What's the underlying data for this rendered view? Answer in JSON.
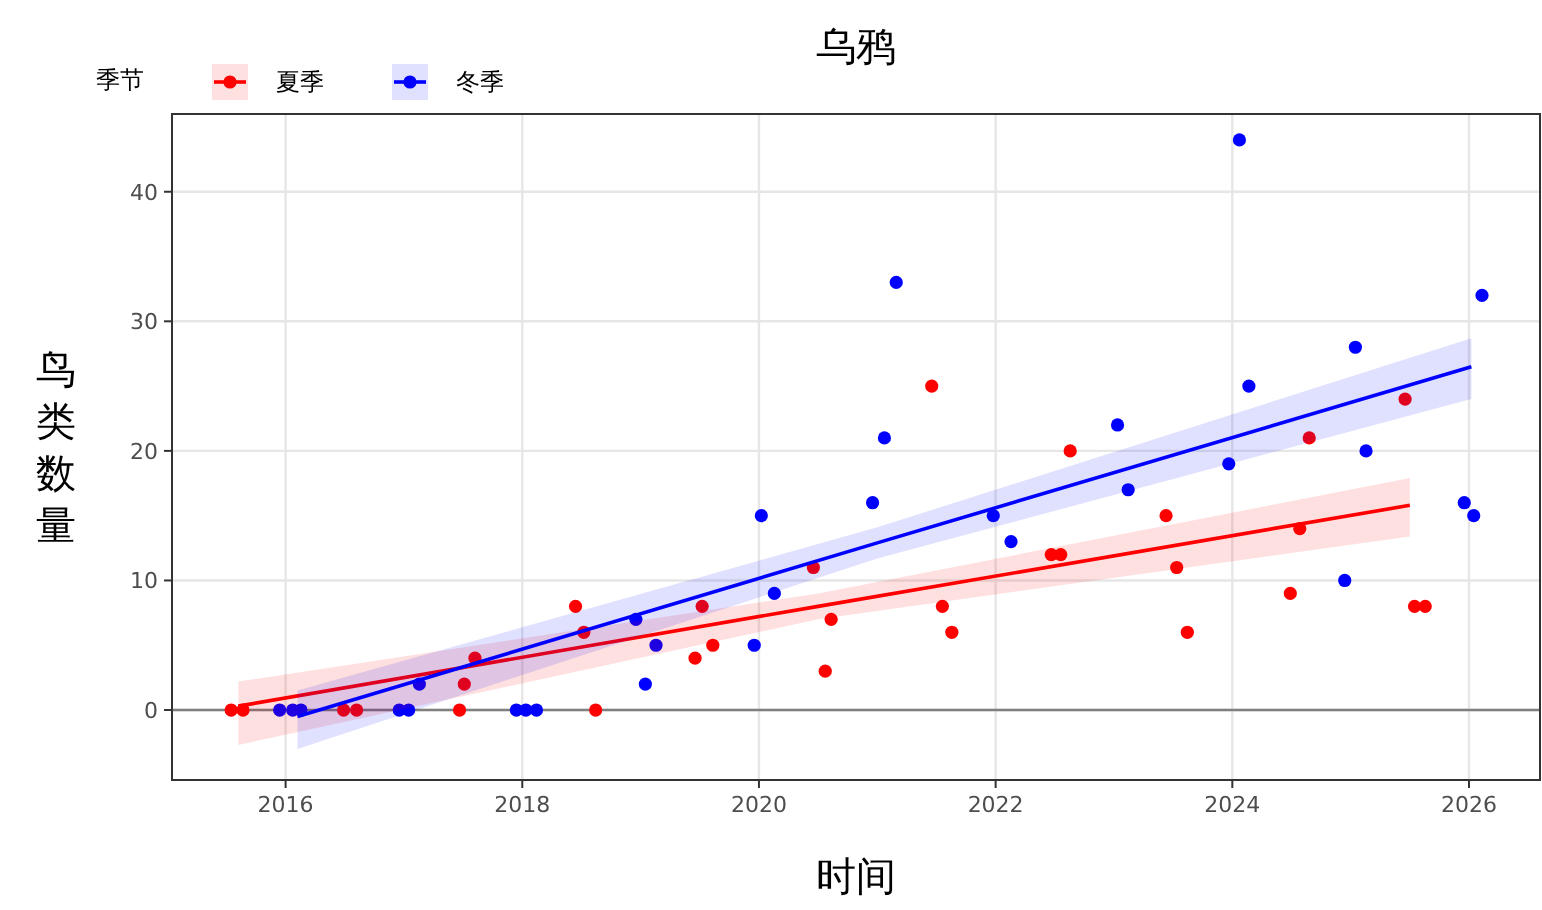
{
  "chart_data": {
    "type": "scatter",
    "title": "乌鸦",
    "xlabel": "时间",
    "ylabel": "鸟类数量",
    "legend_title": "季节",
    "legend": "top left",
    "xlim": [
      2015.04,
      2026.6
    ],
    "xticks": [
      2016,
      2018,
      2020,
      2022,
      2024,
      2026
    ],
    "ylim": [
      -5.4,
      46
    ],
    "yticks": [
      0,
      10,
      20,
      30,
      40
    ],
    "grid": true,
    "ref_lines": [
      {
        "axis": "y",
        "value": 0,
        "color": "#808080"
      }
    ],
    "series": [
      {
        "name": "夏季",
        "color": "#ff0000",
        "marker": "circle",
        "x": [
          2015.54,
          2015.64,
          2016.49,
          2016.6,
          2017.47,
          2017.51,
          2017.6,
          2018.45,
          2018.52,
          2018.62,
          2019.46,
          2019.52,
          2019.61,
          2020.46,
          2020.56,
          2020.61,
          2021.46,
          2021.55,
          2021.63,
          2022.47,
          2022.55,
          2022.63,
          2023.44,
          2023.53,
          2023.62,
          2024.49,
          2024.57,
          2024.65,
          2025.46,
          2025.54,
          2025.63
        ],
        "values": [
          0,
          0,
          0,
          0,
          0,
          2,
          4,
          8,
          6,
          0,
          4,
          8,
          5,
          11,
          3,
          7,
          25,
          8,
          6,
          12,
          12,
          20,
          15,
          11,
          6,
          9,
          14,
          21,
          24,
          8,
          8
        ]
      },
      {
        "name": "冬季",
        "color": "#0000ff",
        "marker": "circle",
        "x": [
          2015.95,
          2016.06,
          2016.13,
          2016.96,
          2017.04,
          2017.13,
          2017.95,
          2018.03,
          2018.12,
          2018.96,
          2019.04,
          2019.13,
          2019.96,
          2020.02,
          2020.13,
          2020.96,
          2021.06,
          2021.16,
          2021.98,
          2022.13,
          2023.03,
          2023.12,
          2023.97,
          2024.06,
          2024.14,
          2024.95,
          2025.04,
          2025.13,
          2025.96,
          2026.04,
          2026.11
        ],
        "values": [
          0,
          0,
          0,
          0,
          0,
          2,
          0,
          0,
          0,
          7,
          2,
          5,
          5,
          15,
          9,
          16,
          21,
          33,
          15,
          13,
          22,
          17,
          19,
          44,
          25,
          10,
          28,
          20,
          16,
          15,
          32
        ]
      },
      {
        "color": "#ff0000",
        "type": "line",
        "marker": "none",
        "x": [
          2015.6,
          2020.5,
          2025.5
        ],
        "values": [
          0.3,
          8.0,
          15.8
        ],
        "lower": [
          -2.7,
          7.0,
          13.4
        ],
        "upper": [
          2.2,
          9.0,
          17.9
        ]
      },
      {
        "color": "#0000ff",
        "type": "line",
        "marker": "none",
        "x": [
          2016.1,
          2021.0,
          2026.02
        ],
        "values": [
          -0.5,
          12.9,
          26.5
        ],
        "lower": [
          -3.0,
          11.7,
          24.0
        ],
        "upper": [
          1.5,
          14.1,
          28.7
        ]
      }
    ]
  }
}
